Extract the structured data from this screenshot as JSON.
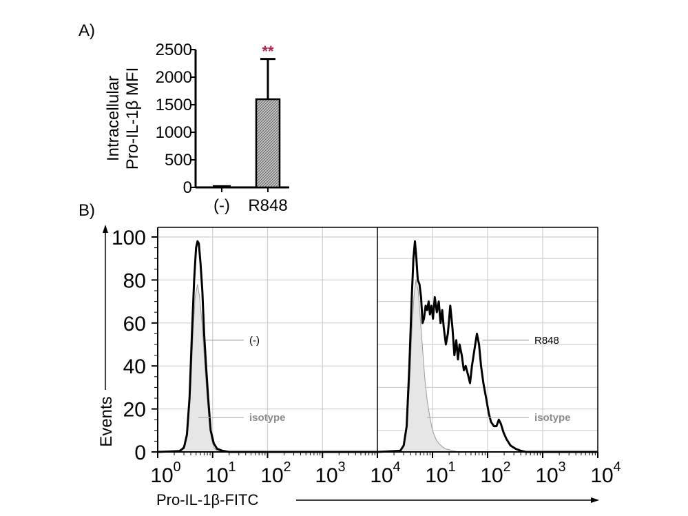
{
  "panels": {
    "a_label": "A)",
    "b_label": "B)"
  },
  "chart_data": [
    {
      "type": "bar",
      "panel": "A",
      "ylabel_line1": "Intracellular",
      "ylabel_line2": "Pro-IL-1β MFI",
      "categories": [
        "(-)",
        "R848"
      ],
      "values": [
        20,
        1600
      ],
      "error_upper": [
        0,
        2330
      ],
      "ylim": [
        0,
        2500
      ],
      "yticks": [
        0,
        500,
        1000,
        1500,
        2000,
        2500
      ],
      "ytick_labels": [
        "0",
        "500",
        "1000",
        "1500",
        "2000",
        "2500"
      ],
      "significance": {
        "category": "R848",
        "label": "**",
        "color": "#b0244c"
      },
      "bar_fill": "hatched-gray"
    },
    {
      "type": "line",
      "panel": "B",
      "xlabel": "Pro-IL-1β-FITC",
      "ylabel": "Events",
      "xscale": "log",
      "ylim": [
        0,
        100
      ],
      "yticks": [
        0,
        20,
        40,
        60,
        80,
        100
      ],
      "ytick_labels": [
        "0",
        "20",
        "40",
        "60",
        "80",
        "100"
      ],
      "xtick_labels": [
        {
          "base": "10",
          "exp": "0"
        },
        {
          "base": "10",
          "exp": "1"
        },
        {
          "base": "10",
          "exp": "2"
        },
        {
          "base": "10",
          "exp": "3"
        },
        {
          "base": "10",
          "exp": "4"
        },
        {
          "base": "10",
          "exp": "1"
        },
        {
          "base": "10",
          "exp": "2"
        },
        {
          "base": "10",
          "exp": "3"
        },
        {
          "base": "10",
          "exp": "4"
        }
      ],
      "histograms": [
        {
          "name": "(-)",
          "label_color": "#000000",
          "isotype_label": "isotype",
          "sample": [
            [
              1,
              0
            ],
            [
              2.5,
              0.4
            ],
            [
              3,
              2
            ],
            [
              3.4,
              8
            ],
            [
              3.8,
              25
            ],
            [
              4.2,
              55
            ],
            [
              4.6,
              80
            ],
            [
              5.0,
              95
            ],
            [
              5.3,
              98
            ],
            [
              5.6,
              97
            ],
            [
              6.0,
              88
            ],
            [
              6.5,
              75
            ],
            [
              7.0,
              55
            ],
            [
              7.6,
              40
            ],
            [
              8.3,
              25
            ],
            [
              9.2,
              10
            ],
            [
              10.5,
              4
            ],
            [
              12,
              1.5
            ],
            [
              15,
              0.5
            ],
            [
              20,
              0
            ],
            [
              10000,
              0
            ]
          ],
          "isotype": [
            [
              1,
              0
            ],
            [
              2.6,
              0.5
            ],
            [
              3,
              3
            ],
            [
              3.5,
              10
            ],
            [
              4,
              30
            ],
            [
              4.4,
              55
            ],
            [
              4.8,
              72
            ],
            [
              5.3,
              78
            ],
            [
              5.8,
              72
            ],
            [
              6.4,
              60
            ],
            [
              7,
              45
            ],
            [
              7.8,
              28
            ],
            [
              8.6,
              15
            ],
            [
              9.5,
              6
            ],
            [
              10.5,
              2
            ],
            [
              12,
              0.5
            ],
            [
              15,
              0
            ],
            [
              10000,
              0
            ]
          ]
        },
        {
          "name": "R848",
          "label_color": "#000000",
          "isotype_label": "isotype",
          "sample": [
            [
              1,
              0
            ],
            [
              2.6,
              0.5
            ],
            [
              3,
              3
            ],
            [
              3.4,
              12
            ],
            [
              3.8,
              40
            ],
            [
              4.2,
              72
            ],
            [
              4.5,
              90
            ],
            [
              4.8,
              98
            ],
            [
              5.1,
              90
            ],
            [
              5.4,
              80
            ],
            [
              5.8,
              78
            ],
            [
              6.2,
              72
            ],
            [
              6.6,
              60
            ],
            [
              7.0,
              62
            ],
            [
              7.5,
              68
            ],
            [
              8.0,
              66
            ],
            [
              8.5,
              70
            ],
            [
              9.0,
              64
            ],
            [
              9.6,
              68
            ],
            [
              10.2,
              62
            ],
            [
              11,
              72
            ],
            [
              12,
              65
            ],
            [
              13,
              70
            ],
            [
              14,
              60
            ],
            [
              15,
              66
            ],
            [
              16,
              58
            ],
            [
              17.5,
              50
            ],
            [
              19,
              55
            ],
            [
              21,
              68
            ],
            [
              23,
              58
            ],
            [
              25,
              45
            ],
            [
              27,
              52
            ],
            [
              29,
              43
            ],
            [
              31,
              50
            ],
            [
              34,
              45
            ],
            [
              37,
              38
            ],
            [
              40,
              40
            ],
            [
              44,
              36
            ],
            [
              48,
              32
            ],
            [
              52,
              40
            ],
            [
              58,
              48
            ],
            [
              64,
              55
            ],
            [
              70,
              50
            ],
            [
              76,
              40
            ],
            [
              84,
              32
            ],
            [
              94,
              25
            ],
            [
              105,
              18
            ],
            [
              115,
              14
            ],
            [
              130,
              12
            ],
            [
              145,
              12
            ],
            [
              160,
              15
            ],
            [
              175,
              13
            ],
            [
              195,
              9
            ],
            [
              220,
              6
            ],
            [
              260,
              3
            ],
            [
              320,
              1.5
            ],
            [
              400,
              0.5
            ],
            [
              500,
              0
            ],
            [
              10000,
              0
            ]
          ],
          "isotype": [
            [
              1,
              0
            ],
            [
              2.6,
              0.5
            ],
            [
              3,
              3
            ],
            [
              3.4,
              10
            ],
            [
              3.8,
              30
            ],
            [
              4.2,
              55
            ],
            [
              4.6,
              72
            ],
            [
              5.0,
              80
            ],
            [
              5.5,
              75
            ],
            [
              6.0,
              62
            ],
            [
              6.6,
              48
            ],
            [
              7.2,
              35
            ],
            [
              8.0,
              24
            ],
            [
              9.0,
              16
            ],
            [
              10,
              10
            ],
            [
              11.5,
              6
            ],
            [
              13,
              4
            ],
            [
              15,
              2.5
            ],
            [
              17,
              1.5
            ],
            [
              20,
              1
            ],
            [
              24,
              0.5
            ],
            [
              30,
              0
            ],
            [
              10000,
              0
            ]
          ]
        }
      ]
    }
  ]
}
